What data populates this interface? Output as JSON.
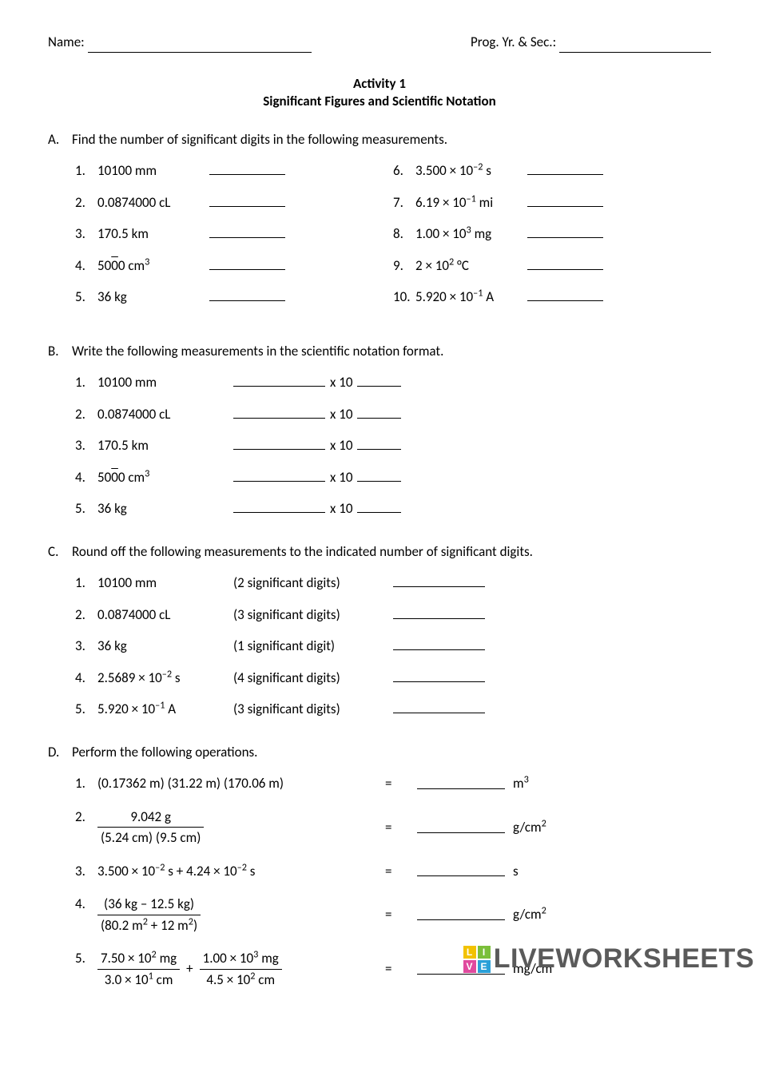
{
  "header": {
    "name_label": "Name:",
    "prog_label": "Prog. Yr. & Sec.:"
  },
  "title": {
    "line1": "Activity 1",
    "line2": "Significant Figures and Scientific Notation"
  },
  "sectionA": {
    "label": "A.",
    "prompt": "Find the number of significant digits in the following measurements.",
    "left": [
      {
        "n": "1.",
        "text": "10100 mm"
      },
      {
        "n": "2.",
        "text": "0.0874000 cL"
      },
      {
        "n": "3.",
        "text": "170.5 km"
      },
      {
        "n": "4.",
        "text_html": "50<span class='overline'>0</span>0 cm<sup>3</sup>"
      },
      {
        "n": "5.",
        "text": "36 kg"
      }
    ],
    "right": [
      {
        "n": "6.",
        "text_html": "3.500 × 10<sup>–2</sup> s"
      },
      {
        "n": "7.",
        "text_html": "6.19 × 10<sup>–1</sup> mi"
      },
      {
        "n": "8.",
        "text_html": "1.00 × 10<sup>3</sup> mg"
      },
      {
        "n": "9.",
        "text_html": "2 × 10<sup>2</sup> °C"
      },
      {
        "n": "10.",
        "text_html": "5.920 × 10<sup>–1</sup> A"
      }
    ]
  },
  "sectionB": {
    "label": "B.",
    "prompt": "Write the following measurements in the scientific notation format.",
    "items": [
      {
        "n": "1.",
        "text": "10100 mm"
      },
      {
        "n": "2.",
        "text": "0.0874000 cL"
      },
      {
        "n": "3.",
        "text": "170.5 km"
      },
      {
        "n": "4.",
        "text_html": "50<span class='overline'>0</span>0 cm<sup>3</sup>"
      },
      {
        "n": "5.",
        "text": "36 kg"
      }
    ],
    "x10": "x 10"
  },
  "sectionC": {
    "label": "C.",
    "prompt": "Round off the following measurements to the indicated number of significant digits.",
    "items": [
      {
        "n": "1.",
        "text": "10100 mm",
        "sig": "(2 significant digits)"
      },
      {
        "n": "2.",
        "text": "0.0874000 cL",
        "sig": "(3 significant digits)"
      },
      {
        "n": "3.",
        "text": "36 kg",
        "sig": "(1 significant digit)"
      },
      {
        "n": "4.",
        "text_html": "2.5689 × 10<sup>–2</sup> s",
        "sig": "(4 significant digits)"
      },
      {
        "n": "5.",
        "text_html": "5.920 × 10<sup>–1</sup> A",
        "sig": "(3 significant digits)"
      }
    ]
  },
  "sectionD": {
    "label": "D.",
    "prompt": "Perform the following operations.",
    "items": [
      {
        "n": "1.",
        "expr_html": "(0.17362 m) (31.22 m) (170.06 m)",
        "unit_html": "m<sup>3</sup>"
      },
      {
        "n": "2.",
        "frac": {
          "top": "9.042 g",
          "bot": "(5.24 cm) (9.5 cm)"
        },
        "unit_html": "g/cm<sup>2</sup>"
      },
      {
        "n": "3.",
        "expr_html": "3.500 × 10<sup>–2</sup> s + 4.24 × 10<sup>–2</sup> s",
        "unit_html": "s"
      },
      {
        "n": "4.",
        "frac": {
          "top": "(36 kg – 12.5 kg)",
          "bot_html": "(80.2 m<sup>2</sup> + 12 m<sup>2</sup>)"
        },
        "unit_html": "g/cm<sup>2</sup>"
      },
      {
        "n": "5.",
        "dualfrac": {
          "f1": {
            "top_html": "7.50 × 10<sup>2</sup> mg",
            "bot_html": "3.0 × 10<sup>1</sup> cm"
          },
          "f2": {
            "top_html": "1.00 × 10<sup>3</sup> mg",
            "bot_html": "4.5 × 10<sup>2</sup> cm"
          }
        },
        "unit_html": "mg/cm"
      }
    ]
  },
  "watermark": {
    "text": "LIVEWORKSHEETS",
    "badge": [
      "L",
      "I",
      "V",
      "E"
    ],
    "colors": [
      "#f2c200",
      "#7bbf3a",
      "#e04a9e",
      "#2aa0d8"
    ]
  }
}
